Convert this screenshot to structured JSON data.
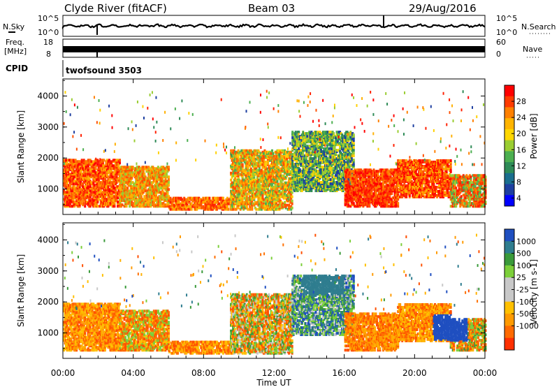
{
  "header": {
    "station": "Clyde River (fitACF)",
    "beam": "Beam 03",
    "date": "29/Aug/2016"
  },
  "noise_panel": {
    "left_label": "N.Sky",
    "right_label": "N.Search",
    "left_ticks": [
      "10^5",
      "10^0"
    ],
    "right_ticks": [
      "10^5",
      "10^0"
    ]
  },
  "freq_panel": {
    "left_label_1": "Freq.",
    "left_label_2": "[MHz]",
    "right_label": "Nave",
    "left_ticks": [
      "18",
      "8"
    ],
    "right_ticks": [
      "60",
      "0"
    ]
  },
  "cpid": {
    "label": "CPID",
    "value": "twofsound 3503"
  },
  "chart_data": [
    {
      "type": "heatmap",
      "name": "power",
      "ylabel": "Slant Range [km]",
      "yticks": [
        1000,
        2000,
        3000,
        4000
      ],
      "ylim": [
        180,
        4550
      ],
      "xlim": [
        0,
        24
      ],
      "colorbar": {
        "label": "Power [dB]",
        "ticks": [
          "28",
          "24",
          "20",
          "16",
          "12",
          "8",
          "4"
        ],
        "colors": [
          "#ff0000",
          "#ff3b00",
          "#ff8000",
          "#ffb400",
          "#ffd700",
          "#9acd32",
          "#4caf50",
          "#2e8b57",
          "#1a6e8e",
          "#1e3fa0",
          "#0000ff"
        ]
      }
    },
    {
      "type": "heatmap",
      "name": "velocity",
      "ylabel": "Slant Range [km]",
      "yticks": [
        1000,
        2000,
        3000,
        4000
      ],
      "ylim": [
        180,
        4550
      ],
      "xlim": [
        0,
        24
      ],
      "colorbar": {
        "label": "Velocity [m s-1]",
        "ticks": [
          "1000",
          "500",
          "100",
          "25",
          "-25",
          "-100",
          "-500",
          "-1000"
        ],
        "colors": [
          "#1f4fc0",
          "#2f7d8f",
          "#3a9a3a",
          "#7ccf3a",
          "#c8c8c8",
          "#c8c8c8",
          "#ffc000",
          "#ff9a00",
          "#ff6a00",
          "#ff3000"
        ]
      }
    }
  ],
  "xaxis": {
    "ticks": [
      "00:00",
      "04:00",
      "08:00",
      "12:00",
      "16:00",
      "20:00",
      "00:00"
    ],
    "label": "Time UT"
  }
}
